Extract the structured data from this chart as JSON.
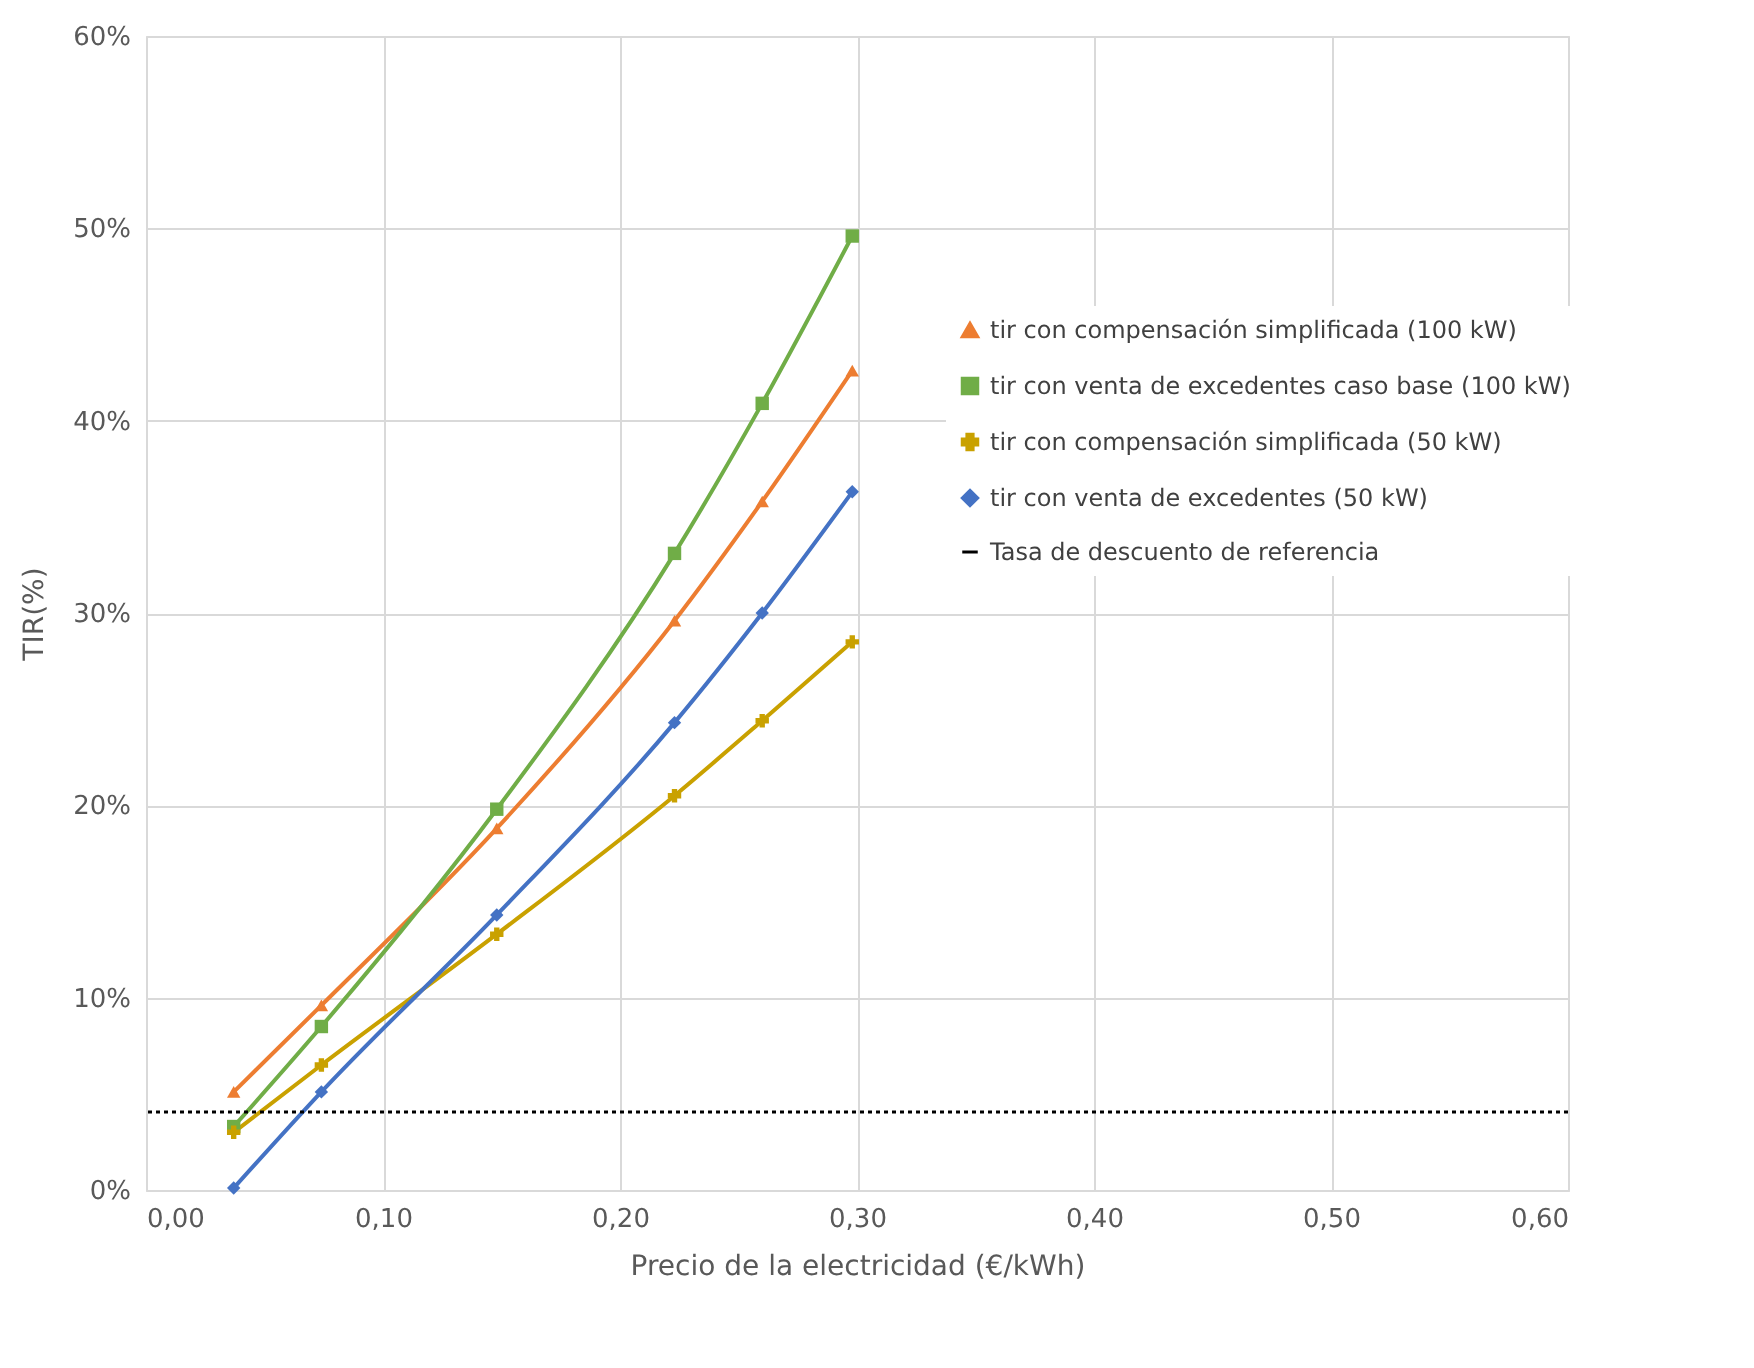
{
  "chart_data": {
    "type": "line",
    "xlabel": "Precio de la electricidad (€/kWh)",
    "ylabel": "TIR(%)",
    "xlim": [
      0,
      0.6
    ],
    "ylim": [
      0,
      60
    ],
    "xticks": [
      {
        "value": 0,
        "label": "0,00"
      },
      {
        "value": 0.1,
        "label": "0,10"
      },
      {
        "value": 0.2,
        "label": "0,20"
      },
      {
        "value": 0.3,
        "label": "0,30"
      },
      {
        "value": 0.4,
        "label": "0,40"
      },
      {
        "value": 0.5,
        "label": "0,50"
      },
      {
        "value": 0.6,
        "label": "0,60"
      }
    ],
    "yticks": [
      {
        "value": 0,
        "label": "0%"
      },
      {
        "value": 10,
        "label": "10%"
      },
      {
        "value": 20,
        "label": "20%"
      },
      {
        "value": 30,
        "label": "30%"
      },
      {
        "value": 40,
        "label": "40%"
      },
      {
        "value": 50,
        "label": "50%"
      },
      {
        "value": 60,
        "label": "60%"
      }
    ],
    "grid": true,
    "legend": "right",
    "x": [
      0.037,
      0.074,
      0.148,
      0.223,
      0.26,
      0.298
    ],
    "series": [
      {
        "name": "tir con compensación simplificada (100 kW)",
        "color": "#ed7d31",
        "marker": "triangle",
        "values": [
          5.1,
          9.6,
          18.8,
          29.6,
          35.8,
          42.6
        ]
      },
      {
        "name": "tir con venta de excedentes caso base (100 kW)",
        "color": "#70ad47",
        "marker": "square",
        "values": [
          3.3,
          8.5,
          19.8,
          33.1,
          40.9,
          49.6
        ]
      },
      {
        "name": "tir con compensación simplificada  (50 kW)",
        "color": "#c9a100",
        "marker": "cross",
        "values": [
          3.0,
          6.5,
          13.3,
          20.5,
          24.4,
          28.5
        ]
      },
      {
        "name": "tir con venta de excedentes (50 kW)",
        "color": "#4472c4",
        "marker": "diamond",
        "values": [
          0.1,
          5.1,
          14.3,
          24.3,
          30.0,
          36.3
        ]
      }
    ],
    "ref_lines": [
      {
        "axis": "y",
        "value": 4.05,
        "label": "Tasa de descuento de referencia",
        "color": "#000000",
        "line_style": "dotted"
      }
    ]
  }
}
